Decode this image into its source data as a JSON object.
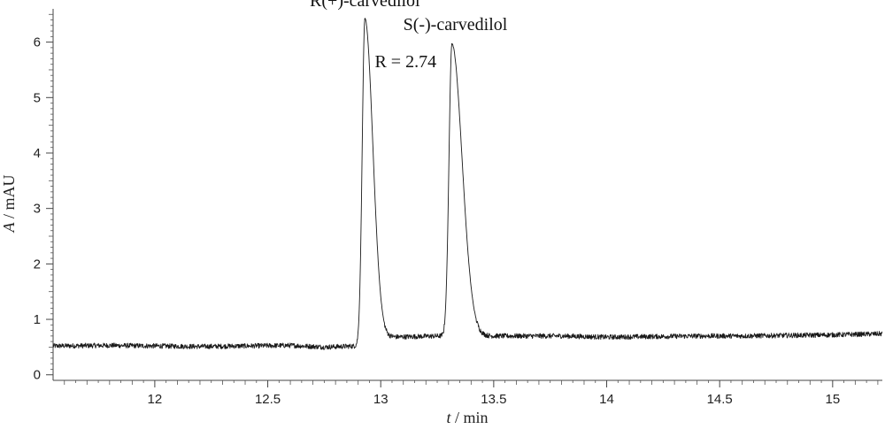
{
  "chart_data": {
    "type": "line",
    "title": "",
    "xlabel_var": "t",
    "xlabel_unit": " / min",
    "ylabel_var": "A",
    "ylabel_unit": " / mAU",
    "xlim": [
      11.55,
      15.22
    ],
    "ylim": [
      -0.1,
      6.6
    ],
    "x_ticks": [
      12,
      12.5,
      13,
      13.5,
      14,
      14.5,
      15
    ],
    "x_tick_labels": [
      "12",
      "12.5",
      "13",
      "13.5",
      "14",
      "14.5",
      "15"
    ],
    "y_ticks": [
      0,
      1,
      2,
      3,
      4,
      5,
      6
    ],
    "y_tick_labels": [
      "0",
      "1",
      "2",
      "3",
      "4",
      "5",
      "6"
    ],
    "grid": false,
    "series": [
      {
        "color": "#1a1a1a",
        "baseline": [
          [
            11.55,
            0.52
          ],
          [
            11.8,
            0.53
          ],
          [
            12.0,
            0.52
          ],
          [
            12.2,
            0.51
          ],
          [
            12.4,
            0.52
          ],
          [
            12.6,
            0.53
          ],
          [
            12.75,
            0.5
          ],
          [
            12.9,
            0.52
          ],
          [
            13.05,
            0.68
          ],
          [
            13.25,
            0.7
          ],
          [
            13.6,
            0.7
          ],
          [
            13.8,
            0.7
          ],
          [
            14.0,
            0.68
          ],
          [
            14.2,
            0.69
          ],
          [
            14.4,
            0.7
          ],
          [
            14.6,
            0.7
          ],
          [
            14.8,
            0.71
          ],
          [
            15.0,
            0.72
          ],
          [
            15.22,
            0.74
          ]
        ],
        "peaks": [
          {
            "center": 12.93,
            "height": 5.87,
            "rise": 0.012,
            "tail": 0.035
          },
          {
            "center": 13.315,
            "height": 5.27,
            "rise": 0.013,
            "tail": 0.045
          }
        ]
      }
    ],
    "annotations": [
      {
        "text": "R(+)-carvedilol",
        "x": 12.93,
        "y": 6.65
      },
      {
        "text": "S(-)-carvedilol",
        "x": 13.33,
        "y": 6.22
      },
      {
        "text": "R = 2.74",
        "x": 13.11,
        "y": 5.55
      }
    ]
  }
}
